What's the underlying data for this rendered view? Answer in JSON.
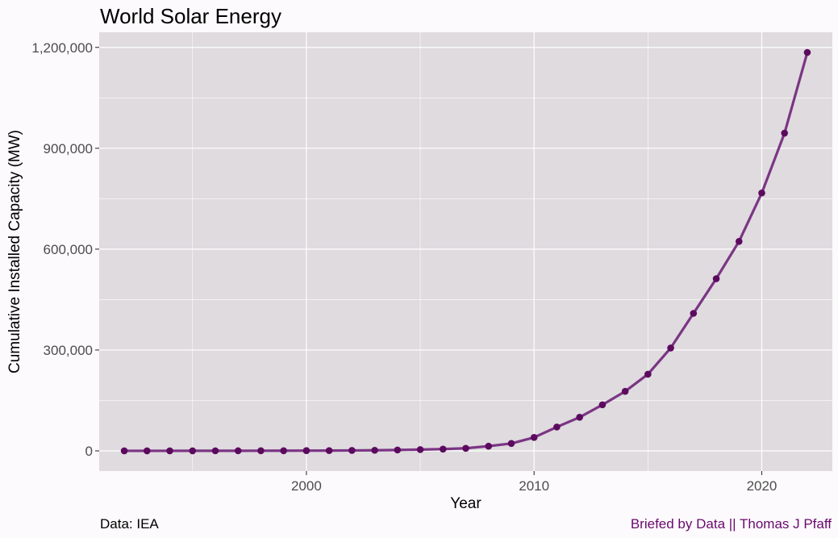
{
  "colors": {
    "background": "#FCFAFC",
    "panel": "#DFDBDF",
    "grid": "#FFFFFF",
    "line": "#7B3584",
    "point": "#5C0A5E",
    "caption_right": "#6A0A6E"
  },
  "chart_data": {
    "type": "line",
    "title": "World Solar Energy",
    "xlabel": "Year",
    "ylabel": "Cumulative Installed Capacity (MW)",
    "xlim": [
      1990.9,
      2023.1
    ],
    "ylim": [
      -60000,
      1245000
    ],
    "x_ticks": [
      2000,
      2010,
      2020
    ],
    "x_tick_labels": [
      "2000",
      "2010",
      "2020"
    ],
    "y_ticks": [
      0,
      300000,
      600000,
      900000,
      1200000
    ],
    "y_tick_labels": [
      "0",
      "300,000",
      "600,000",
      "900,000",
      "1,200,000"
    ],
    "grid": true,
    "legend": "none",
    "x": [
      1992,
      1993,
      1994,
      1995,
      1996,
      1997,
      1998,
      1999,
      2000,
      2001,
      2002,
      2003,
      2004,
      2005,
      2006,
      2007,
      2008,
      2009,
      2010,
      2011,
      2012,
      2013,
      2014,
      2015,
      2016,
      2017,
      2018,
      2019,
      2020,
      2021,
      2022
    ],
    "series": [
      {
        "values": [
          100,
          130,
          160,
          200,
          250,
          320,
          400,
          500,
          700,
          900,
          1300,
          1800,
          2700,
          3900,
          5300,
          7700,
          14000,
          22000,
          40000,
          71000,
          100000,
          137000,
          177000,
          228000,
          306000,
          409000,
          512000,
          623000,
          767000,
          945000,
          1185000
        ]
      }
    ]
  },
  "captions": {
    "left": "Data: IEA",
    "right": "Briefed by Data || Thomas J Pfaff"
  }
}
